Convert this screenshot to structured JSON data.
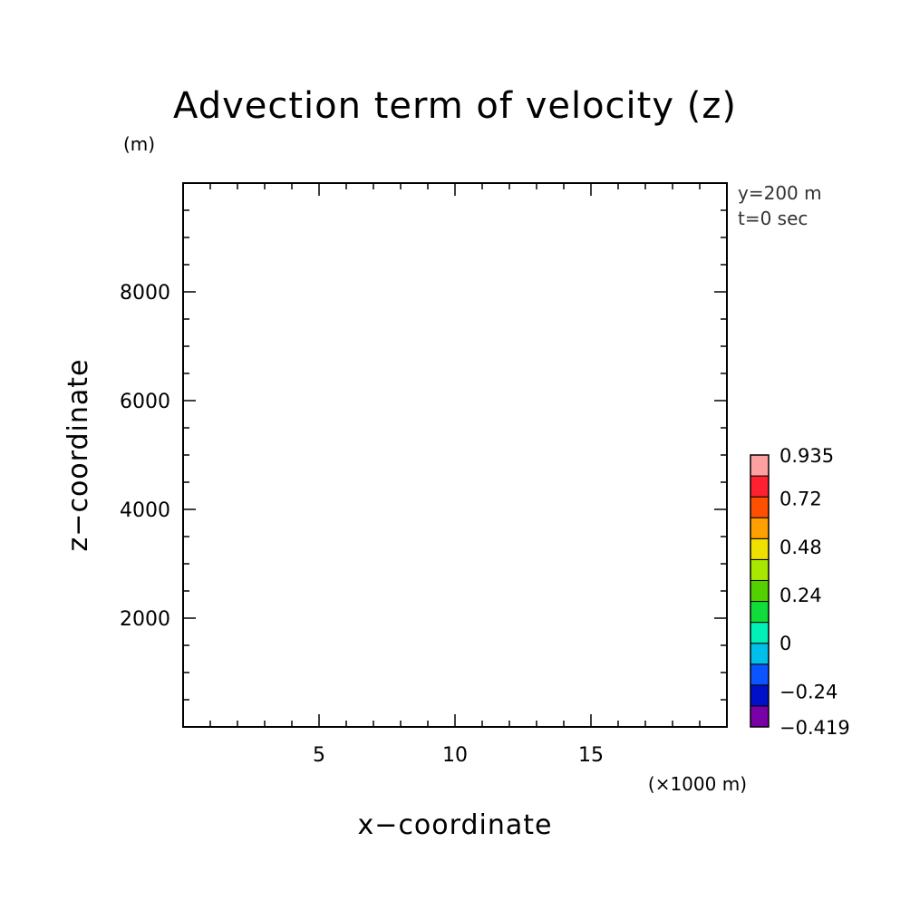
{
  "chart_data": {
    "type": "heatmap",
    "title": "Advection term of velocity (z)",
    "xlabel": "x−coordinate",
    "ylabel": "z−coordinate",
    "x_unit": "(×1000 m)",
    "y_unit": "(m)",
    "xlim": [
      0,
      20
    ],
    "ylim": [
      0,
      10000
    ],
    "x_ticks": [
      5,
      10,
      15
    ],
    "x_tick_labels": [
      "5",
      "10",
      "15"
    ],
    "y_ticks": [
      2000,
      4000,
      6000,
      8000
    ],
    "y_tick_labels": [
      "2000",
      "4000",
      "6000",
      "8000"
    ],
    "info_lines": [
      "y=200 m",
      "t=0 sec"
    ],
    "colorbar": {
      "levels": [
        -0.419,
        -0.36,
        -0.24,
        -0.12,
        0,
        0.12,
        0.24,
        0.36,
        0.48,
        0.6,
        0.72,
        0.84,
        0.935
      ],
      "labels": [
        "−0.419",
        "−0.24",
        "0",
        "0.24",
        "0.48",
        "0.72",
        "0.935"
      ],
      "label_values": [
        -0.419,
        -0.24,
        0,
        0.24,
        0.48,
        0.72,
        0.935
      ],
      "colors": [
        "#7a00a8",
        "#0010c8",
        "#0a55ff",
        "#00bfe8",
        "#00f0b8",
        "#11dd3a",
        "#52d000",
        "#a8e800",
        "#f0e000",
        "#ffa000",
        "#ff5000",
        "#ff2030",
        "#ffa0a0"
      ]
    },
    "grid": false,
    "data_present": false
  }
}
